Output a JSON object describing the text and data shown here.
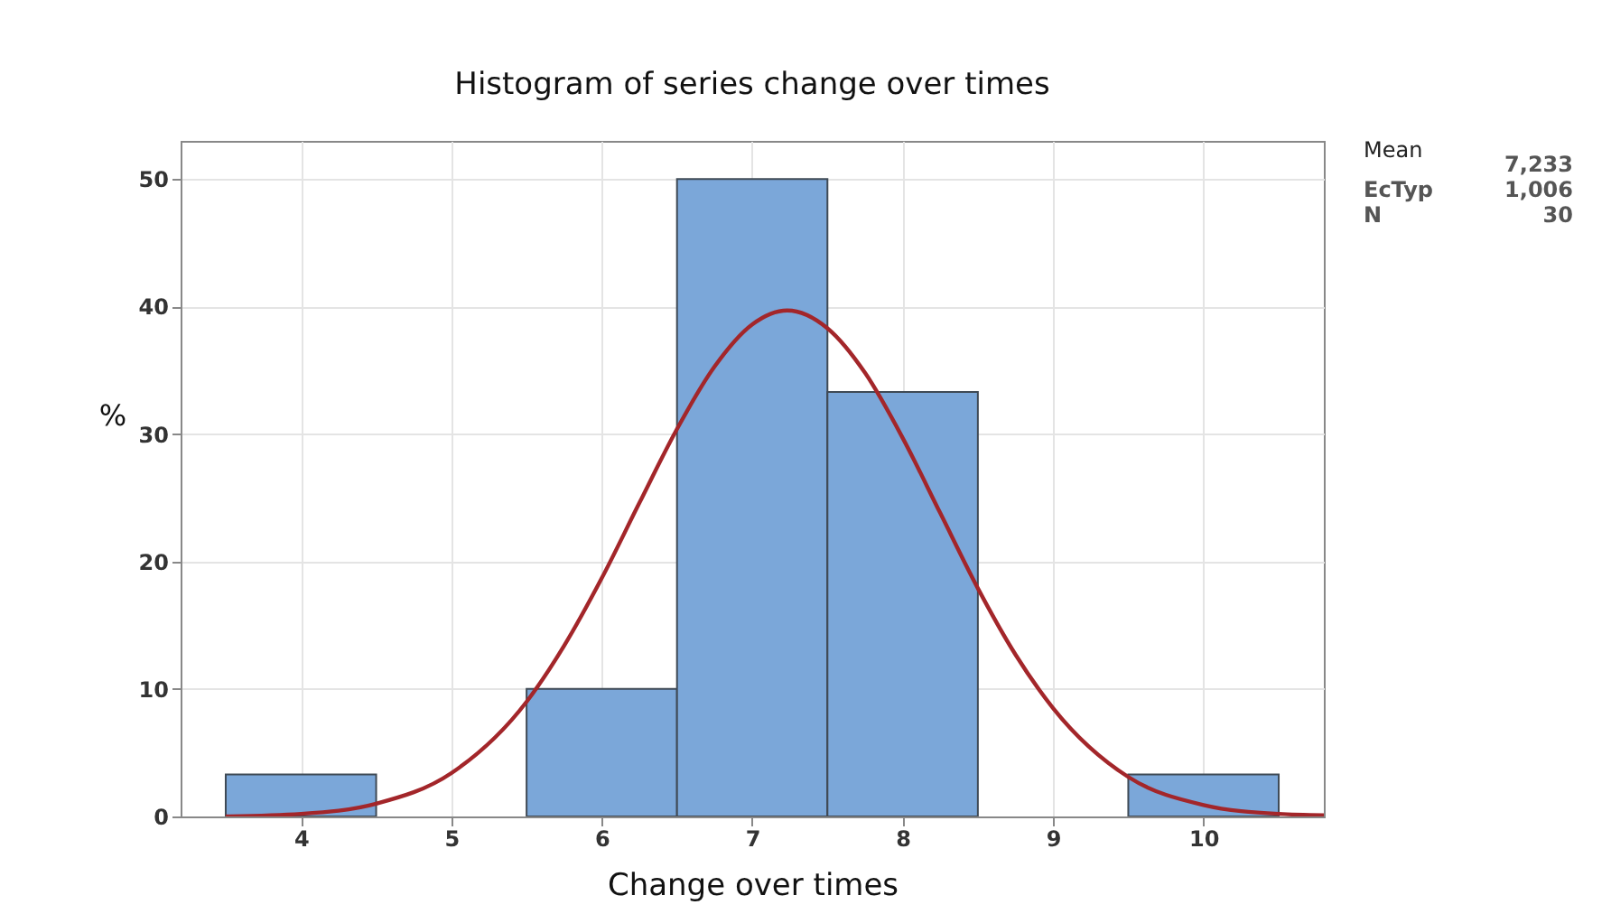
{
  "chart_data": {
    "type": "histogram",
    "title": "Histogram of series change over times",
    "xlabel": "Change over times",
    "ylabel": "%",
    "bins": [
      3.5,
      4.5,
      5.5,
      6.5,
      7.5,
      8.5,
      9.5,
      10.5
    ],
    "values": [
      3.3,
      0,
      10,
      50,
      33.3,
      0,
      3.3
    ],
    "color": "#7ba7d9",
    "series": [
      {
        "type": "line",
        "color": "#a3262a",
        "x": [
          3.5,
          4.0,
          4.5,
          5.0,
          5.5,
          5.75,
          6.0,
          6.25,
          6.5,
          6.75,
          7.0,
          7.233,
          7.5,
          7.75,
          8.0,
          8.25,
          8.5,
          8.75,
          9.0,
          9.5,
          10.0,
          10.5,
          10.8
        ],
        "values": [
          0.0,
          0.2,
          1.0,
          3.4,
          9.0,
          13.4,
          18.7,
          24.6,
          30.4,
          35.3,
          38.6,
          39.7,
          38.3,
          34.8,
          29.7,
          23.8,
          17.9,
          12.7,
          8.5,
          3.1,
          0.9,
          0.2,
          0.1
        ]
      }
    ],
    "xlim": [
      3.2,
      10.8
    ],
    "ylim": [
      0,
      53
    ],
    "xticks": [
      4,
      5,
      6,
      7,
      8,
      9,
      10
    ],
    "yticks": [
      0,
      10,
      20,
      30,
      40,
      50
    ],
    "grid": true,
    "annotations": [
      "Mean",
      "7,233",
      "EcTyp",
      "1,006",
      "N",
      "30"
    ]
  }
}
